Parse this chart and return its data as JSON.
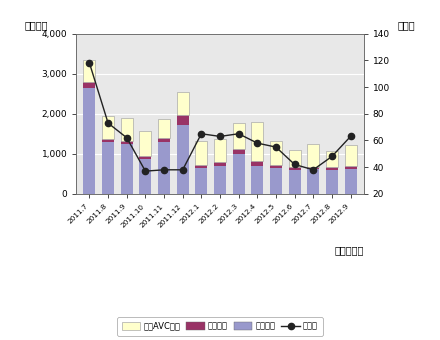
{
  "months": [
    "2011.7",
    "2011.8",
    "2011.9",
    "2011.10",
    "2011.11",
    "2011.12",
    "2012.1",
    "2012.2",
    "2012.3",
    "2012.4",
    "2012.5",
    "2012.6",
    "2012.7",
    "2012.8",
    "2012.9"
  ],
  "eizo": [
    2650,
    1300,
    1250,
    870,
    1300,
    1720,
    650,
    700,
    1000,
    700,
    650,
    600,
    620,
    600,
    620
  ],
  "onsei": [
    130,
    80,
    80,
    70,
    90,
    250,
    80,
    100,
    120,
    120,
    80,
    70,
    60,
    70,
    70
  ],
  "car_avc": [
    570,
    560,
    560,
    620,
    490,
    570,
    580,
    560,
    650,
    980,
    600,
    430,
    560,
    400,
    540
  ],
  "yoy": [
    118,
    73,
    62,
    37,
    38,
    38,
    65,
    63,
    65,
    58,
    55,
    42,
    38,
    48,
    63
  ],
  "bar_color_eizo": "#9999cc",
  "bar_color_onsei": "#993366",
  "bar_color_car_avc": "#ffffcc",
  "line_color": "#222222",
  "plot_bg_color": "#e8e8e8",
  "fig_bg_color": "#ffffff",
  "ylabel_left": "（億円）",
  "ylabel_right": "（％）",
  "xlabel": "（年・月）",
  "ylim_left": [
    0,
    4000
  ],
  "ylim_right": [
    20,
    140
  ],
  "yticks_left": [
    0,
    1000,
    2000,
    3000,
    4000
  ],
  "yticks_left_labels": [
    "0",
    "1,000",
    "2,000",
    "3,000",
    "4,000"
  ],
  "yticks_right": [
    20,
    40,
    60,
    80,
    100,
    120,
    140
  ],
  "legend_labels": [
    "カーAVC機器",
    "音声機器",
    "映像機器",
    "前年比"
  ],
  "figsize": [
    4.4,
    3.4
  ],
  "dpi": 100
}
